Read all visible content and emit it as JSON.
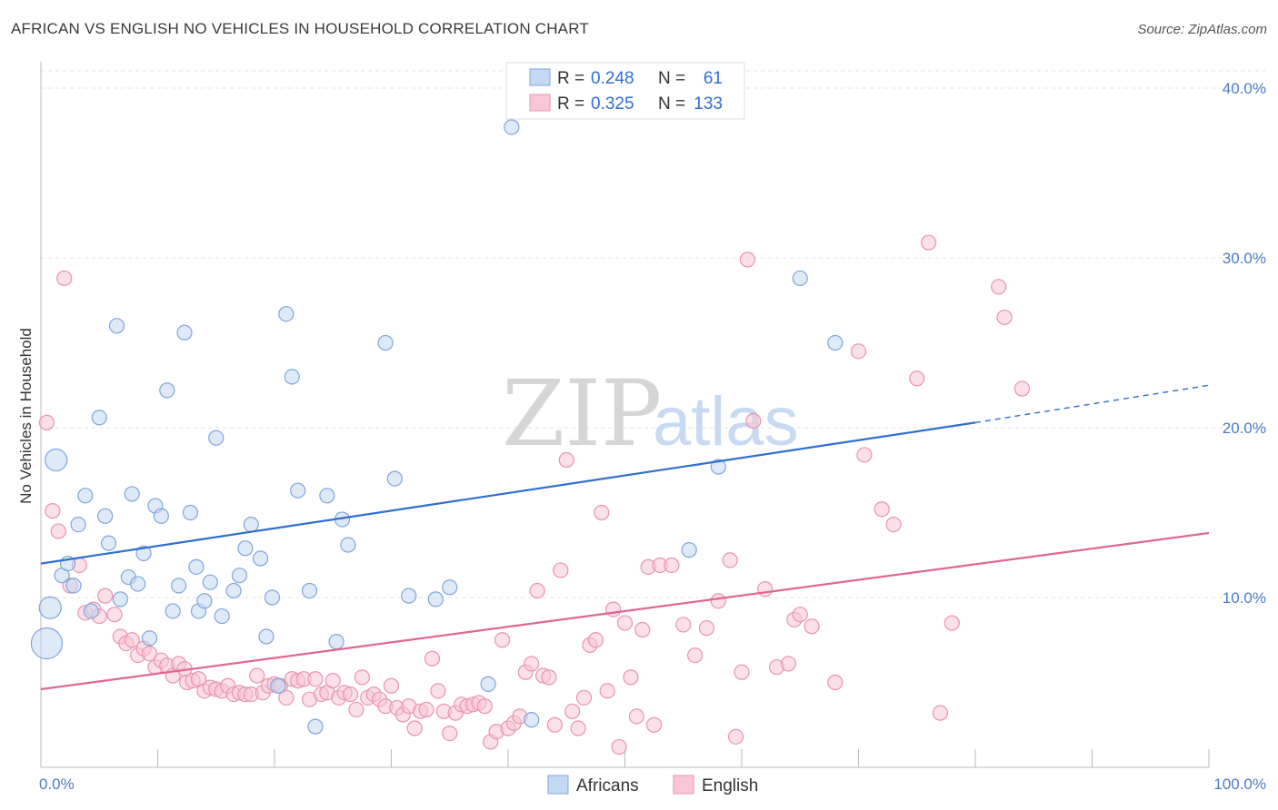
{
  "header": {
    "title": "AFRICAN VS ENGLISH NO VEHICLES IN HOUSEHOLD CORRELATION CHART",
    "source": "Source: ZipAtlas.com"
  },
  "watermark": {
    "zip": "ZIP",
    "atlas": "atlas"
  },
  "legend": {
    "rows": [
      {
        "r_label": "R =",
        "r_value": "0.248",
        "n_label": "N =",
        "n_value": "61"
      },
      {
        "r_label": "R =",
        "r_value": "0.325",
        "n_label": "N =",
        "n_value": "133"
      }
    ]
  },
  "bottom_legend": {
    "africans": "Africans",
    "english": "English"
  },
  "chart_data": {
    "type": "scatter",
    "title": "AFRICAN VS ENGLISH NO VEHICLES IN HOUSEHOLD CORRELATION CHART",
    "xlabel": "",
    "ylabel": "No Vehicles in Household",
    "xlim": [
      0,
      100
    ],
    "ylim": [
      0,
      40
    ],
    "x_tick_labels": [
      "0.0%",
      "100.0%"
    ],
    "y_ticks": [
      10,
      20,
      30,
      40
    ],
    "y_tick_labels": [
      "10.0%",
      "20.0%",
      "30.0%",
      "40.0%"
    ],
    "grid": true,
    "legend_position": "top-center",
    "colors": {
      "africans_fill": "#c5d9f2",
      "africans_stroke": "#7ea6dc",
      "africans_line": "#2f6fcf",
      "english_fill": "#f8c6d6",
      "english_stroke": "#eb93b0",
      "english_line": "#e0678f"
    },
    "series": [
      {
        "name": "Africans",
        "r": 0.248,
        "n": 61,
        "trend": {
          "x0": 0,
          "y0": 12.0,
          "x1": 80,
          "y1": 20.3,
          "dash_x1": 100,
          "dash_y1": 22.5
        },
        "points": [
          [
            0.5,
            7.3,
            3
          ],
          [
            0.8,
            9.4,
            2
          ],
          [
            1.3,
            18.1,
            2
          ],
          [
            1.8,
            11.3,
            1
          ],
          [
            2.3,
            12.0,
            1
          ],
          [
            2.8,
            10.7,
            1
          ],
          [
            3.2,
            14.3,
            1
          ],
          [
            3.8,
            16.0,
            1
          ],
          [
            4.3,
            9.2,
            1
          ],
          [
            5.0,
            20.6,
            1
          ],
          [
            5.5,
            14.8,
            1
          ],
          [
            5.8,
            13.2,
            1
          ],
          [
            6.5,
            26.0,
            1
          ],
          [
            6.8,
            9.9,
            1
          ],
          [
            7.5,
            11.2,
            1
          ],
          [
            7.8,
            16.1,
            1
          ],
          [
            8.3,
            10.8,
            1
          ],
          [
            8.8,
            12.6,
            1
          ],
          [
            9.3,
            7.6,
            1
          ],
          [
            9.8,
            15.4,
            1
          ],
          [
            10.3,
            14.8,
            1
          ],
          [
            10.8,
            22.2,
            1
          ],
          [
            11.3,
            9.2,
            1
          ],
          [
            11.8,
            10.7,
            1
          ],
          [
            12.3,
            25.6,
            1
          ],
          [
            12.8,
            15.0,
            1
          ],
          [
            13.3,
            11.8,
            1
          ],
          [
            13.5,
            9.2,
            1
          ],
          [
            14.0,
            9.8,
            1
          ],
          [
            14.5,
            10.9,
            1
          ],
          [
            15.0,
            19.4,
            1
          ],
          [
            15.5,
            8.9,
            1
          ],
          [
            16.5,
            10.4,
            1
          ],
          [
            17.0,
            11.3,
            1
          ],
          [
            17.5,
            12.9,
            1
          ],
          [
            18.0,
            14.3,
            1
          ],
          [
            18.8,
            12.3,
            1
          ],
          [
            19.3,
            7.7,
            1
          ],
          [
            19.8,
            10.0,
            1
          ],
          [
            20.3,
            4.8,
            1
          ],
          [
            21.0,
            26.7,
            1
          ],
          [
            21.5,
            23.0,
            1
          ],
          [
            22.0,
            16.3,
            1
          ],
          [
            23.0,
            10.4,
            1
          ],
          [
            23.5,
            2.4,
            1
          ],
          [
            24.5,
            16.0,
            1
          ],
          [
            25.3,
            7.4,
            1
          ],
          [
            25.8,
            14.6,
            1
          ],
          [
            26.3,
            13.1,
            1
          ],
          [
            29.5,
            25.0,
            1
          ],
          [
            30.3,
            17.0,
            1
          ],
          [
            31.5,
            10.1,
            1
          ],
          [
            33.8,
            9.9,
            1
          ],
          [
            35.0,
            10.6,
            1
          ],
          [
            38.3,
            4.9,
            1
          ],
          [
            40.3,
            37.7,
            1
          ],
          [
            42.0,
            2.8,
            1
          ],
          [
            55.5,
            12.8,
            1
          ],
          [
            58.0,
            17.7,
            1
          ],
          [
            65.0,
            28.8,
            1
          ],
          [
            68.0,
            25.0,
            1
          ]
        ]
      },
      {
        "name": "English",
        "r": 0.325,
        "n": 133,
        "trend": {
          "x0": 0,
          "y0": 4.6,
          "x1": 100,
          "y1": 13.8
        },
        "points": [
          [
            0.5,
            20.3,
            1
          ],
          [
            1.0,
            15.1,
            1
          ],
          [
            1.5,
            13.9,
            1
          ],
          [
            2.0,
            28.8,
            1
          ],
          [
            2.5,
            10.7,
            1
          ],
          [
            3.3,
            11.9,
            1
          ],
          [
            3.8,
            9.1,
            1
          ],
          [
            4.5,
            9.3,
            1
          ],
          [
            5.0,
            8.9,
            1
          ],
          [
            5.5,
            10.1,
            1
          ],
          [
            6.3,
            9.0,
            1
          ],
          [
            6.8,
            7.7,
            1
          ],
          [
            7.3,
            7.3,
            1
          ],
          [
            7.8,
            7.5,
            1
          ],
          [
            8.3,
            6.6,
            1
          ],
          [
            8.8,
            7.0,
            1
          ],
          [
            9.3,
            6.7,
            1
          ],
          [
            9.8,
            5.9,
            1
          ],
          [
            10.3,
            6.3,
            1
          ],
          [
            10.8,
            6.0,
            1
          ],
          [
            11.3,
            5.4,
            1
          ],
          [
            11.8,
            6.1,
            1
          ],
          [
            12.3,
            5.8,
            1
          ],
          [
            12.5,
            5.0,
            1
          ],
          [
            13.0,
            5.1,
            1
          ],
          [
            13.5,
            5.2,
            1
          ],
          [
            14.0,
            4.5,
            1
          ],
          [
            14.5,
            4.7,
            1
          ],
          [
            15.0,
            4.6,
            1
          ],
          [
            15.5,
            4.5,
            1
          ],
          [
            16.0,
            4.8,
            1
          ],
          [
            16.5,
            4.3,
            1
          ],
          [
            17.0,
            4.4,
            1
          ],
          [
            17.5,
            4.3,
            1
          ],
          [
            18.0,
            4.3,
            1
          ],
          [
            18.5,
            5.4,
            1
          ],
          [
            19.0,
            4.4,
            1
          ],
          [
            19.5,
            4.8,
            1
          ],
          [
            20.0,
            4.9,
            1
          ],
          [
            20.5,
            4.8,
            1
          ],
          [
            21.0,
            4.1,
            1
          ],
          [
            21.5,
            5.2,
            1
          ],
          [
            22.0,
            5.1,
            1
          ],
          [
            22.5,
            5.2,
            1
          ],
          [
            23.0,
            4.0,
            1
          ],
          [
            23.5,
            5.2,
            1
          ],
          [
            24.0,
            4.3,
            1
          ],
          [
            24.5,
            4.4,
            1
          ],
          [
            25.0,
            5.1,
            1
          ],
          [
            25.5,
            4.1,
            1
          ],
          [
            26.0,
            4.4,
            1
          ],
          [
            26.5,
            4.3,
            1
          ],
          [
            27.0,
            3.4,
            1
          ],
          [
            27.5,
            5.3,
            1
          ],
          [
            28.0,
            4.1,
            1
          ],
          [
            28.5,
            4.3,
            1
          ],
          [
            29.0,
            4.0,
            1
          ],
          [
            29.5,
            3.6,
            1
          ],
          [
            30.0,
            4.8,
            1
          ],
          [
            30.5,
            3.5,
            1
          ],
          [
            31.0,
            3.1,
            1
          ],
          [
            31.5,
            3.6,
            1
          ],
          [
            32.0,
            2.3,
            1
          ],
          [
            32.5,
            3.3,
            1
          ],
          [
            33.0,
            3.4,
            1
          ],
          [
            33.5,
            6.4,
            1
          ],
          [
            34.0,
            4.5,
            1
          ],
          [
            34.5,
            3.3,
            1
          ],
          [
            35.0,
            2.0,
            1
          ],
          [
            35.5,
            3.2,
            1
          ],
          [
            36.0,
            3.7,
            1
          ],
          [
            36.5,
            3.6,
            1
          ],
          [
            37.0,
            3.7,
            1
          ],
          [
            37.5,
            3.8,
            1
          ],
          [
            38.0,
            3.6,
            1
          ],
          [
            38.5,
            1.5,
            1
          ],
          [
            39.0,
            2.1,
            1
          ],
          [
            39.5,
            7.5,
            1
          ],
          [
            40.0,
            2.3,
            1
          ],
          [
            40.5,
            2.6,
            1
          ],
          [
            41.0,
            3.0,
            1
          ],
          [
            41.5,
            5.6,
            1
          ],
          [
            42.0,
            6.1,
            1
          ],
          [
            42.5,
            10.4,
            1
          ],
          [
            43.0,
            5.4,
            1
          ],
          [
            43.5,
            5.3,
            1
          ],
          [
            44.0,
            2.5,
            1
          ],
          [
            44.5,
            11.6,
            1
          ],
          [
            45.0,
            18.1,
            1
          ],
          [
            45.5,
            3.3,
            1
          ],
          [
            46.0,
            2.3,
            1
          ],
          [
            46.5,
            4.1,
            1
          ],
          [
            47.0,
            7.2,
            1
          ],
          [
            47.5,
            7.5,
            1
          ],
          [
            48.0,
            15.0,
            1
          ],
          [
            48.5,
            4.5,
            1
          ],
          [
            49.0,
            9.3,
            1
          ],
          [
            49.5,
            1.2,
            1
          ],
          [
            50.0,
            8.5,
            1
          ],
          [
            50.5,
            5.3,
            1
          ],
          [
            51.0,
            3.0,
            1
          ],
          [
            51.5,
            8.1,
            1
          ],
          [
            52.0,
            11.8,
            1
          ],
          [
            52.5,
            2.5,
            1
          ],
          [
            53.0,
            11.9,
            1
          ],
          [
            54.0,
            11.9,
            1
          ],
          [
            55.0,
            8.4,
            1
          ],
          [
            56.0,
            6.6,
            1
          ],
          [
            57.0,
            8.2,
            1
          ],
          [
            58.0,
            9.8,
            1
          ],
          [
            59.0,
            12.2,
            1
          ],
          [
            59.5,
            1.8,
            1
          ],
          [
            60.0,
            5.6,
            1
          ],
          [
            60.5,
            29.9,
            1
          ],
          [
            61.0,
            20.4,
            1
          ],
          [
            62.0,
            10.5,
            1
          ],
          [
            63.0,
            5.9,
            1
          ],
          [
            64.0,
            6.1,
            1
          ],
          [
            64.5,
            8.7,
            1
          ],
          [
            65.0,
            9.0,
            1
          ],
          [
            66.0,
            8.3,
            1
          ],
          [
            68.0,
            5.0,
            1
          ],
          [
            70.0,
            24.5,
            1
          ],
          [
            70.5,
            18.4,
            1
          ],
          [
            72.0,
            15.2,
            1
          ],
          [
            73.0,
            14.3,
            1
          ],
          [
            75.0,
            22.9,
            1
          ],
          [
            76.0,
            30.9,
            1
          ],
          [
            77.0,
            3.2,
            1
          ],
          [
            78.0,
            8.5,
            1
          ],
          [
            82.0,
            28.3,
            1
          ],
          [
            82.5,
            26.5,
            1
          ],
          [
            84.0,
            22.3,
            1
          ]
        ]
      }
    ]
  }
}
